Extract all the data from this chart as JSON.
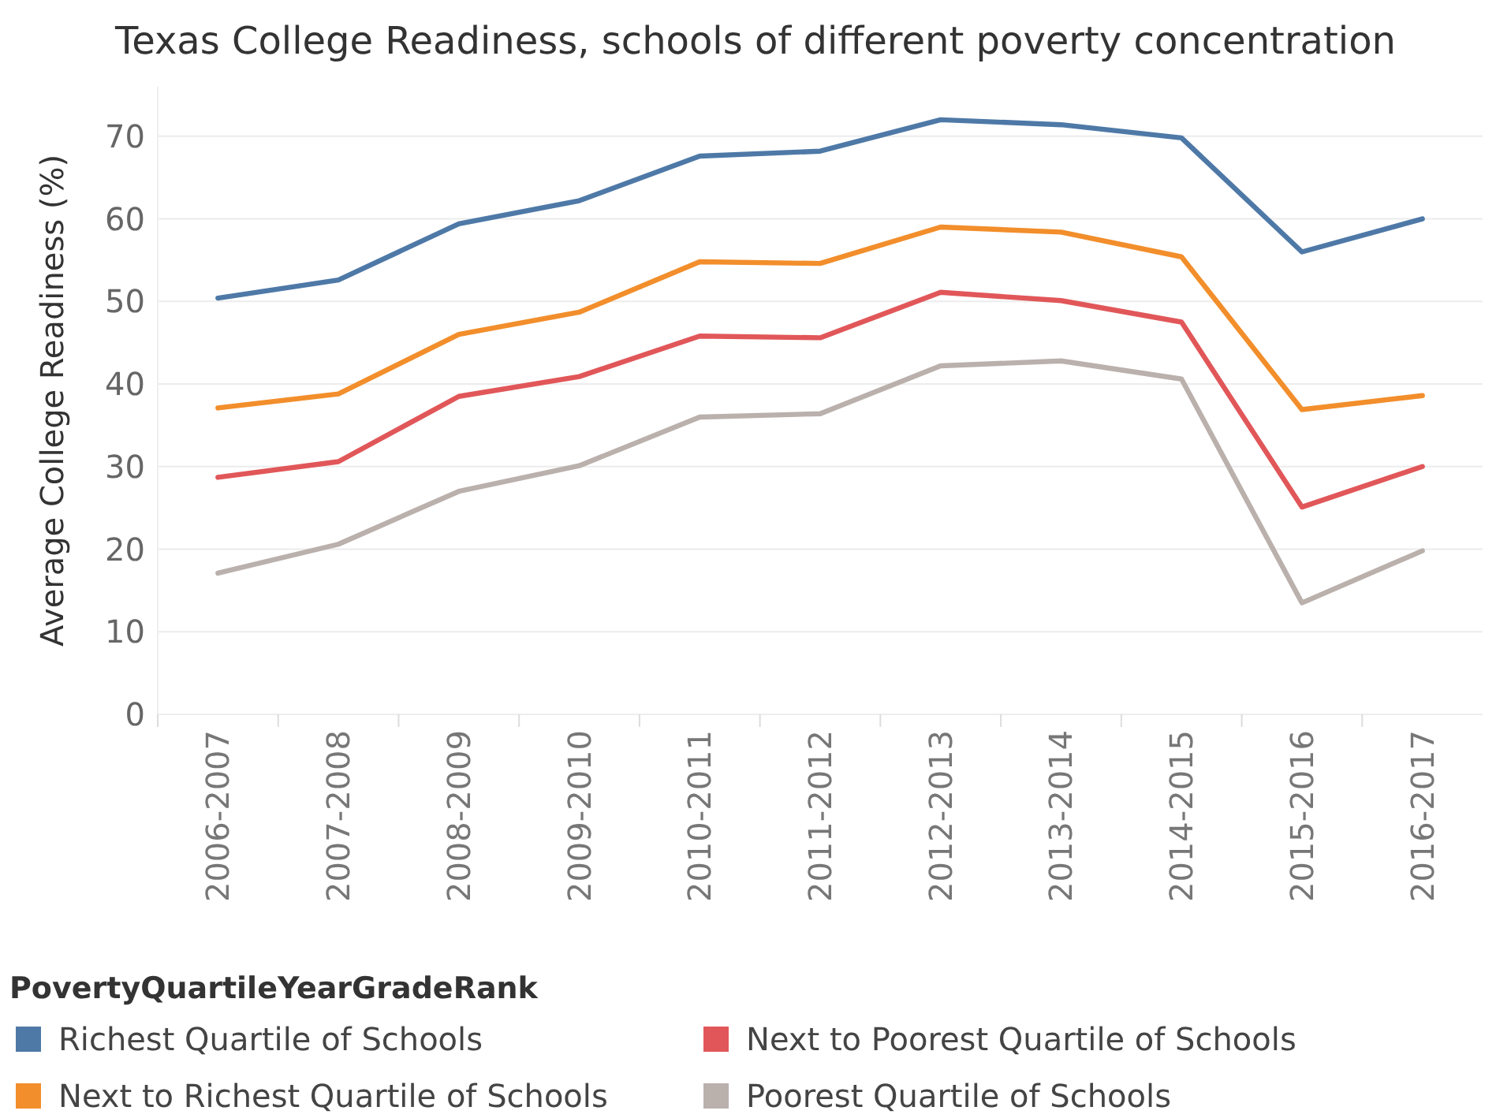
{
  "chart_data": {
    "type": "line",
    "title": "Texas College Readiness, schools of different poverty concentration",
    "ylabel": "Average College Readiness (%)",
    "legend_title": "PovertyQuartileYearGradeRank",
    "categories": [
      "2006-2007",
      "2007-2008",
      "2008-2009",
      "2009-2010",
      "2010-2011",
      "2011-2012",
      "2012-2013",
      "2013-2014",
      "2014-2015",
      "2015-2016",
      "2016-2017"
    ],
    "series": [
      {
        "name": "Richest Quartile of Schools",
        "color": "#4e79a7",
        "values": [
          50.4,
          52.6,
          59.4,
          62.2,
          67.6,
          68.2,
          72.0,
          71.4,
          69.8,
          56.0,
          60.0
        ]
      },
      {
        "name": "Next to Richest Quartile of Schools",
        "color": "#f28e2b",
        "values": [
          37.1,
          38.8,
          46.0,
          48.7,
          54.8,
          54.6,
          59.0,
          58.4,
          55.4,
          36.9,
          38.6
        ]
      },
      {
        "name": "Next to Poorest Quartile of Schools",
        "color": "#e15759",
        "values": [
          28.7,
          30.6,
          38.5,
          40.9,
          45.8,
          45.6,
          51.1,
          50.1,
          47.5,
          25.1,
          30.0
        ]
      },
      {
        "name": "Poorest Quartile of Schools",
        "color": "#bab0ac",
        "values": [
          17.1,
          20.6,
          27.0,
          30.1,
          36.0,
          36.4,
          42.2,
          42.8,
          40.6,
          13.5,
          19.8
        ]
      }
    ],
    "ylim": [
      0,
      76
    ],
    "yticks": [
      0,
      10,
      20,
      30,
      40,
      50,
      60,
      70
    ],
    "grid": "y",
    "legend": "bottom",
    "marker": "none",
    "line_style": "solid"
  }
}
